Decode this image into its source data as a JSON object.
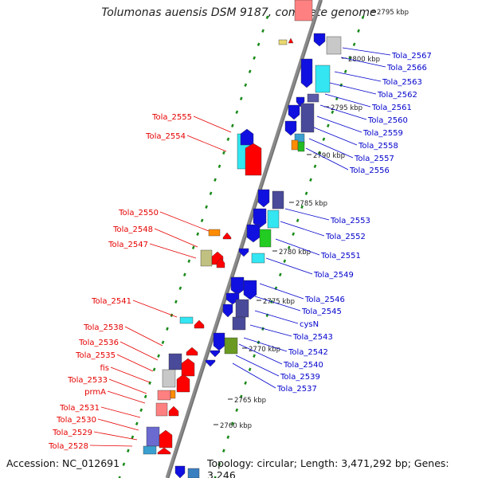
{
  "title": "Tolumonas auensis DSM 9187, complete genome",
  "footer": {
    "accession_label": "Accession:",
    "accession": "NC_012691",
    "topology": "Topology: circular;",
    "length": "Length: 3,471,292 bp;",
    "genes": "Genes: 3,246"
  },
  "colors": {
    "reverse_label": "#e60000",
    "forward_label": "#0000cc",
    "backbone": "#888888",
    "tick": "#1a8a1a"
  },
  "kbp_ticks": [
    {
      "kbp": 2795,
      "label": "2795 kbp"
    },
    {
      "kbp": 2800,
      "label": "2800 kbp"
    },
    {
      "kbp": 2795,
      "label": "2795 kbp"
    },
    {
      "kbp": 2790,
      "label": "2790 kbp"
    },
    {
      "kbp": 2785,
      "label": "2785 kbp"
    },
    {
      "kbp": 2780,
      "label": "2780 kbp"
    },
    {
      "kbp": 2775,
      "label": "2775 kbp"
    },
    {
      "kbp": 2770,
      "label": "2770 kbp"
    },
    {
      "kbp": 2765,
      "label": "2765 kbp"
    },
    {
      "kbp": 2760,
      "label": "2760 kbp"
    }
  ],
  "forward_genes": [
    "Tola_2567",
    "Tola_2566",
    "Tola_2563",
    "Tola_2562",
    "Tola_2561",
    "Tola_2560",
    "Tola_2559",
    "Tola_2558",
    "Tola_2557",
    "Tola_2556",
    "Tola_2553",
    "Tola_2552",
    "Tola_2551",
    "Tola_2549",
    "Tola_2546",
    "Tola_2545",
    "cysN",
    "Tola_2543",
    "Tola_2542",
    "Tola_2540",
    "Tola_2539",
    "Tola_2537"
  ],
  "reverse_genes": [
    "Tola_2555",
    "Tola_2554",
    "Tola_2550",
    "Tola_2548",
    "Tola_2547",
    "Tola_2541",
    "Tola_2538",
    "Tola_2536",
    "Tola_2535",
    "fis",
    "Tola_2533",
    "prmA",
    "Tola_2531",
    "Tola_2530",
    "Tola_2529",
    "Tola_2528"
  ]
}
